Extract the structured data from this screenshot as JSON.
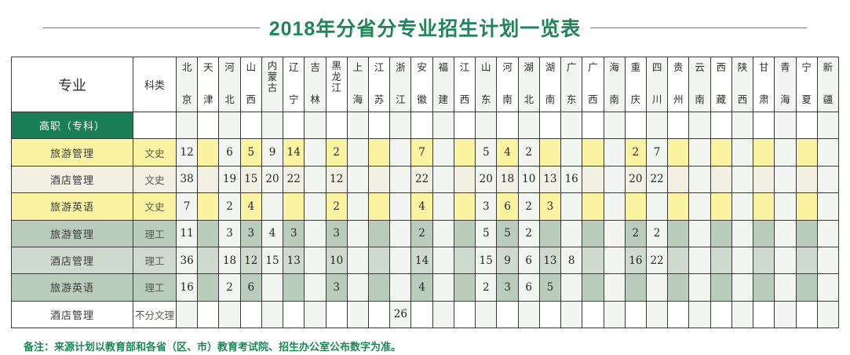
{
  "title": "2018年分省分专业招生计划一览表",
  "note": "备注：来源计划以教育部和各省（区、市）教育考试院、招生办公室公布数字为准。",
  "colors": {
    "title_green": "#1E8659",
    "section_green": "#1A7E54",
    "yellow": "#FAF4A2",
    "cream": "#F2F0E3",
    "sage": "#BACCBB",
    "sage_light": "#CFDACE",
    "stripe": "#F3F5F2",
    "border": "#3A3A3A"
  },
  "table": {
    "major_header": "专业",
    "category_header": "科类",
    "provinces": [
      "北京",
      "天津",
      "河北",
      "山西",
      "内蒙古",
      "辽宁",
      "吉林",
      "黑龙江",
      "上海",
      "江苏",
      "浙江",
      "安徽",
      "福建",
      "江西",
      "山东",
      "河南",
      "湖北",
      "湖南",
      "广东",
      "广西",
      "海南",
      "重庆",
      "四川",
      "贵州",
      "云南",
      "西藏",
      "陕西",
      "甘肃",
      "青海",
      "宁夏",
      "新疆"
    ],
    "section_row": {
      "label": "高职（专科）"
    },
    "rows": [
      {
        "major": "旅游管理",
        "category": "文史",
        "tint": "yellow",
        "values": {
          "北京": 12,
          "河北": 6,
          "山西": 5,
          "内蒙古": 9,
          "辽宁": 14,
          "黑龙江": 2,
          "安徽": 7,
          "山东": 5,
          "河南": 4,
          "湖北": 2,
          "重庆": 2,
          "四川": 7
        }
      },
      {
        "major": "酒店管理",
        "category": "文史",
        "tint": "cream",
        "values": {
          "北京": 38,
          "河北": 19,
          "山西": 15,
          "内蒙古": 20,
          "辽宁": 22,
          "黑龙江": 12,
          "安徽": 22,
          "山东": 20,
          "河南": 18,
          "湖北": 10,
          "湖南": 13,
          "广东": 16,
          "重庆": 20,
          "四川": 22
        }
      },
      {
        "major": "旅游英语",
        "category": "文史",
        "tint": "yellow",
        "values": {
          "北京": 7,
          "河北": 2,
          "山西": 4,
          "黑龙江": 2,
          "安徽": 4,
          "山东": 3,
          "河南": 6,
          "湖北": 2,
          "湖南": 3
        }
      },
      {
        "major": "旅游管理",
        "category": "理工",
        "tint": "green",
        "values": {
          "北京": 11,
          "河北": 3,
          "山西": 3,
          "内蒙古": 4,
          "辽宁": 3,
          "黑龙江": 3,
          "安徽": 2,
          "山东": 5,
          "河南": 5,
          "湖北": 2,
          "重庆": 2,
          "四川": 2
        }
      },
      {
        "major": "酒店管理",
        "category": "理工",
        "tint": "green_light",
        "values": {
          "北京": 36,
          "河北": 18,
          "山西": 12,
          "内蒙古": 15,
          "辽宁": 13,
          "黑龙江": 10,
          "安徽": 14,
          "山东": 15,
          "河南": 9,
          "湖北": 6,
          "湖南": 13,
          "广东": 8,
          "重庆": 16,
          "四川": 22
        }
      },
      {
        "major": "旅游英语",
        "category": "理工",
        "tint": "green",
        "values": {
          "北京": 16,
          "河北": 2,
          "山西": 6,
          "黑龙江": 3,
          "安徽": 4,
          "山东": 2,
          "河南": 3,
          "湖北": 6,
          "湖南": 5
        }
      },
      {
        "major": "酒店管理",
        "category": "不分文理",
        "tint": "white",
        "values": {
          "浙江": 26
        }
      }
    ]
  }
}
